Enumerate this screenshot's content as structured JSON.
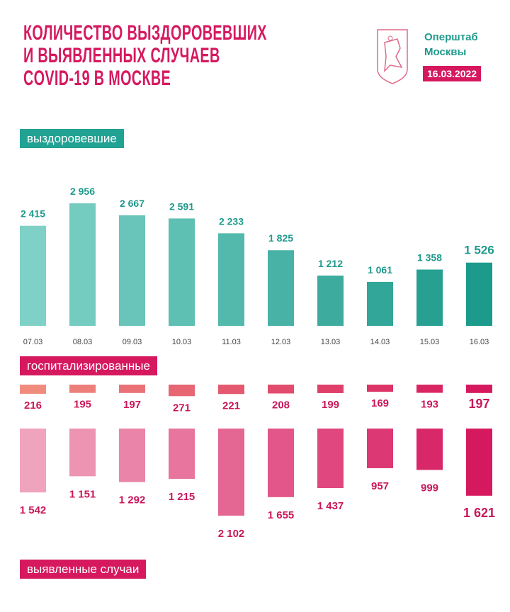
{
  "header": {
    "title_lines": [
      "КОЛИЧЕСТВО ВЫЗДОРОВЕВШИХ",
      "И ВЫЯВЛЕННЫХ СЛУЧАЕВ",
      "COVID-19 В МОСКВЕ"
    ],
    "org_lines": [
      "Оперштаб",
      "Москвы"
    ],
    "date": "16.03.2022"
  },
  "sections": {
    "recovered": "выздоровевшие",
    "hospitalized": "госпитализированные",
    "cases": "выявленные случаи"
  },
  "colors": {
    "pink": "#d6195f",
    "teal": "#1f9a8c"
  },
  "chart_data": [
    {
      "type": "bar",
      "title": "выздоровевшие",
      "categories": [
        "07.03",
        "08.03",
        "09.03",
        "10.03",
        "11.03",
        "12.03",
        "13.03",
        "14.03",
        "15.03",
        "16.03"
      ],
      "values": [
        2415,
        2956,
        2667,
        2591,
        2233,
        1825,
        1212,
        1061,
        1358,
        1526
      ],
      "labels": [
        "2 415",
        "2 956",
        "2 667",
        "2 591",
        "2 233",
        "1 825",
        "1 212",
        "1 061",
        "1 358",
        "1 526"
      ]
    },
    {
      "type": "bar",
      "title": "госпитализированные",
      "categories": [
        "07.03",
        "08.03",
        "09.03",
        "10.03",
        "11.03",
        "12.03",
        "13.03",
        "14.03",
        "15.03",
        "16.03"
      ],
      "values": [
        216,
        195,
        197,
        271,
        221,
        208,
        199,
        169,
        193,
        197
      ],
      "labels": [
        "216",
        "195",
        "197",
        "271",
        "221",
        "208",
        "199",
        "169",
        "193",
        "197"
      ]
    },
    {
      "type": "bar",
      "title": "выявленные случаи",
      "categories": [
        "07.03",
        "08.03",
        "09.03",
        "10.03",
        "11.03",
        "12.03",
        "13.03",
        "14.03",
        "15.03",
        "16.03"
      ],
      "values": [
        1542,
        1151,
        1292,
        1215,
        2102,
        1655,
        1437,
        957,
        999,
        1621
      ],
      "labels": [
        "1 542",
        "1 151",
        "1 292",
        "1 215",
        "2 102",
        "1 655",
        "1 437",
        "957",
        "999",
        "1 621"
      ]
    }
  ]
}
